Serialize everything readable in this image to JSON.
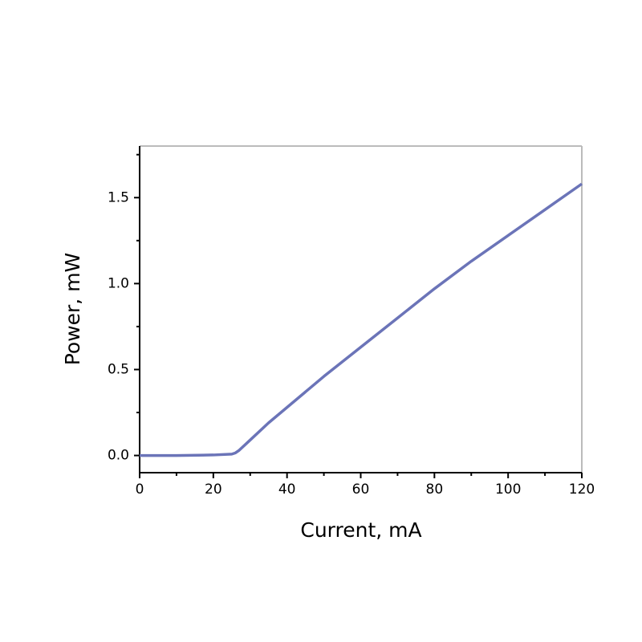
{
  "chart_data": {
    "type": "line",
    "x_label": "Current, mA",
    "y_label": "Power, mW",
    "x": [
      0,
      10,
      20,
      25,
      26,
      27,
      30,
      35,
      40,
      50,
      60,
      70,
      80,
      90,
      100,
      110,
      120
    ],
    "series": [
      {
        "color": "#6b74b8",
        "values": [
          0,
          0,
          0.003,
          0.008,
          0.015,
          0.03,
          0.09,
          0.19,
          0.28,
          0.46,
          0.63,
          0.8,
          0.97,
          1.13,
          1.28,
          1.43,
          1.58
        ]
      }
    ],
    "xlim": [
      0,
      120
    ],
    "xticks": [
      0,
      20,
      40,
      60,
      80,
      100,
      120
    ],
    "xminorticks": [
      10,
      30,
      50,
      70,
      90,
      110
    ],
    "ylim": [
      -0.1,
      1.8
    ],
    "yticks": [
      {
        "value": 0,
        "label": "0.0"
      },
      0.5,
      {
        "value": 1,
        "label": "1.0"
      },
      1.5
    ],
    "yminorticks": [
      0.25,
      0.75,
      1.25,
      1.75
    ],
    "grid": false
  }
}
